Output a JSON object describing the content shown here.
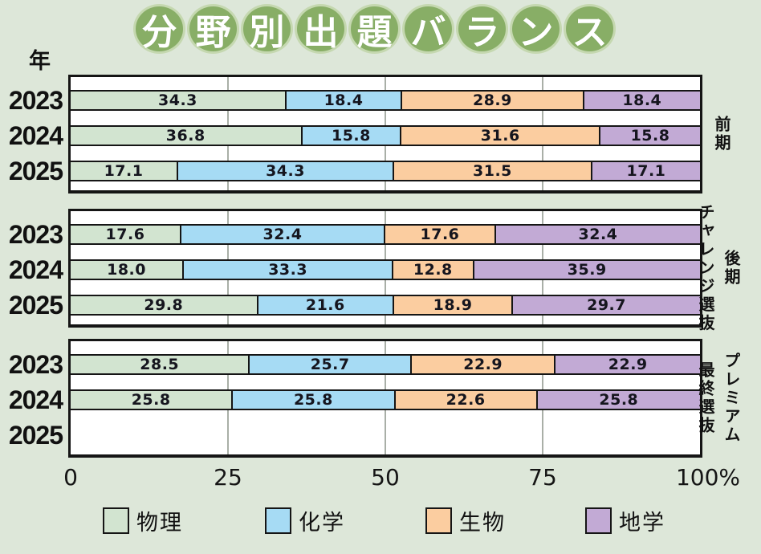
{
  "title": {
    "text": "分野別出題バランス",
    "circle_color": "#88ae66",
    "ring_color": "#c5d8b0",
    "text_color": "#ffffff"
  },
  "year_axis_label": "年",
  "x_axis": {
    "ticks": [
      "0",
      "25",
      "50",
      "75",
      "100%"
    ]
  },
  "chart_data": {
    "type": "bar",
    "variant": "horizontal-stacked-percent",
    "title": "分野別出題バランス",
    "categories": [
      "物理",
      "化学",
      "生物",
      "地学"
    ],
    "series_colors": [
      "#d2e4d0",
      "#a6dbf4",
      "#fbcda0",
      "#c2aad5"
    ],
    "xlim": [
      0,
      100
    ],
    "x_ticks": [
      0,
      25,
      50,
      75,
      100
    ],
    "grid": true,
    "legend_position": "bottom",
    "groups": [
      {
        "name": "前期",
        "side_labels": [
          {
            "text": "前期",
            "position": "single"
          }
        ],
        "rows": [
          {
            "year": "2023",
            "values": [
              34.3,
              18.4,
              28.9,
              18.4
            ],
            "labels": [
              "34.3",
              "18.4",
              "28.9",
              "18.4"
            ]
          },
          {
            "year": "2024",
            "values": [
              36.8,
              15.8,
              31.6,
              15.8
            ],
            "labels": [
              "36.8",
              "15.8",
              "31.6",
              "15.8"
            ]
          },
          {
            "year": "2025",
            "values": [
              17.1,
              34.3,
              31.5,
              17.1
            ],
            "labels": [
              "17.1",
              "34.3",
              "31.5",
              "17.1"
            ]
          }
        ]
      },
      {
        "name": "後期チャレンジ選抜",
        "side_labels": [
          {
            "text": "チャレンジ選抜",
            "position": "inner"
          },
          {
            "text": "後期",
            "position": "outer"
          }
        ],
        "rows": [
          {
            "year": "2023",
            "values": [
              17.6,
              32.4,
              17.6,
              32.4
            ],
            "labels": [
              "17.6",
              "32.4",
              "17.6",
              "32.4"
            ]
          },
          {
            "year": "2024",
            "values": [
              18.0,
              33.3,
              12.8,
              35.9
            ],
            "labels": [
              "18.0",
              "33.3",
              "12.8",
              "35.9"
            ]
          },
          {
            "year": "2025",
            "values": [
              29.8,
              21.6,
              18.9,
              29.7
            ],
            "labels": [
              "29.8",
              "21.6",
              "18.9",
              "29.7"
            ]
          }
        ]
      },
      {
        "name": "プレミアム最終選抜",
        "side_labels": [
          {
            "text": "最終選抜",
            "position": "inner"
          },
          {
            "text": "プレミアム",
            "position": "outer"
          }
        ],
        "rows": [
          {
            "year": "2023",
            "values": [
              28.5,
              25.7,
              22.9,
              22.9
            ],
            "labels": [
              "28.5",
              "25.7",
              "22.9",
              "22.9"
            ]
          },
          {
            "year": "2024",
            "values": [
              25.8,
              25.8,
              22.6,
              25.8
            ],
            "labels": [
              "25.8",
              "25.8",
              "22.6",
              "25.8"
            ]
          },
          {
            "year": "2025",
            "values": [],
            "labels": []
          }
        ]
      }
    ]
  }
}
